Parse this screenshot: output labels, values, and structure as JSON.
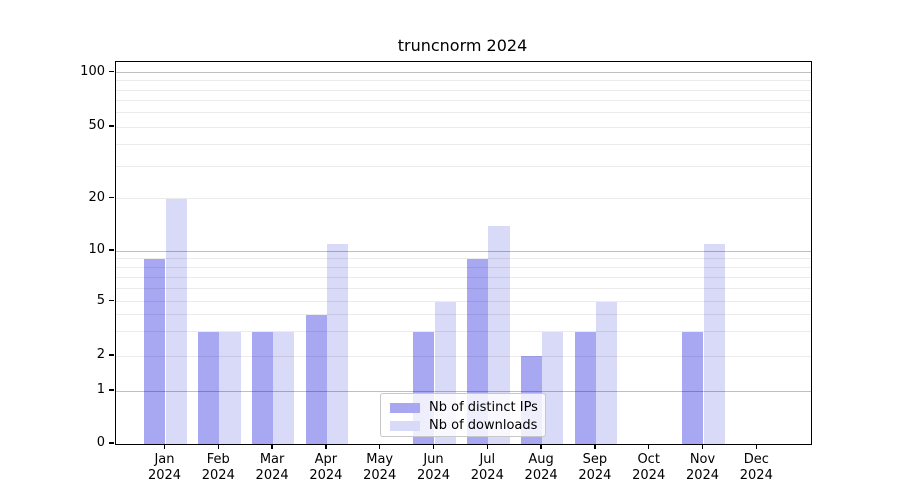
{
  "title": "truncnorm 2024",
  "legend": {
    "items": [
      {
        "label": "Nb of distinct IPs",
        "series": "distinct_ips"
      },
      {
        "label": "Nb of downloads",
        "series": "downloads"
      }
    ]
  },
  "colors": {
    "distinct_ips": "#a8a8f2",
    "downloads": "#d9d9f8",
    "axis": "#000000",
    "grid_major": "rgba(0,0,0,0.25)",
    "grid_minor": "rgba(0,0,0,0.08)",
    "legend_border": "#c8c8c8"
  },
  "chart_data": {
    "type": "bar",
    "title": "truncnorm 2024",
    "categories": [
      "Jan 2024",
      "Feb 2024",
      "Mar 2024",
      "Apr 2024",
      "May 2024",
      "Jun 2024",
      "Jul 2024",
      "Aug 2024",
      "Sep 2024",
      "Oct 2024",
      "Nov 2024",
      "Dec 2024"
    ],
    "series": [
      {
        "name": "Nb of distinct IPs",
        "key": "distinct_ips",
        "values": [
          9,
          3,
          3,
          4,
          0,
          3,
          9,
          2,
          3,
          0,
          3,
          0
        ]
      },
      {
        "name": "Nb of downloads",
        "key": "downloads",
        "values": [
          20,
          3,
          3,
          11,
          0,
          5,
          14,
          3,
          5,
          0,
          11,
          0
        ]
      }
    ],
    "yscale": "symlog-like (linear 0-1, log above)",
    "yticks": [
      0,
      1,
      2,
      5,
      10,
      20,
      50,
      100
    ],
    "minor_grid_values": [
      2,
      3,
      4,
      5,
      6,
      7,
      8,
      9,
      20,
      30,
      40,
      50,
      60,
      70,
      80,
      90
    ],
    "major_grid_values": [
      1,
      10,
      100
    ],
    "ylim": [
      0,
      115
    ],
    "grid": "horizontal",
    "legend_position": "lower center"
  }
}
